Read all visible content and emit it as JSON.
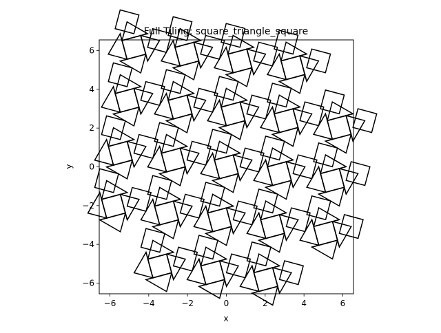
{
  "chart_data": {
    "type": "line",
    "title": "Full Tiling: square_triangle_square",
    "xlabel": "x",
    "ylabel": "y",
    "xlim": [
      -6.55,
      6.55
    ],
    "ylim": [
      -6.55,
      6.55
    ],
    "xticks": [
      -6,
      -4,
      -2,
      0,
      2,
      4,
      6
    ],
    "yticks": [
      -6,
      -4,
      -2,
      0,
      2,
      4,
      6
    ],
    "xtick_labels": [
      "−6",
      "−4",
      "−2",
      "0",
      "2",
      "4",
      "6"
    ],
    "ytick_labels": [
      "−6",
      "−4",
      "−2",
      "0",
      "2",
      "4",
      "6"
    ],
    "grid": false,
    "legend": "none",
    "line_color": "#000000",
    "aspect": "equal",
    "tiling": {
      "square_side": 1.0,
      "rotation_deg": 15,
      "lattice_a": [
        2.732,
        0
      ],
      "lattice_b": [
        0,
        2.732
      ],
      "cells": [
        [
          -2,
          2
        ],
        [
          -1,
          2
        ],
        [
          0,
          2
        ],
        [
          1,
          2
        ],
        [
          -2,
          1
        ],
        [
          -1,
          1
        ],
        [
          0,
          1
        ],
        [
          1,
          1
        ],
        [
          2,
          1
        ],
        [
          -2,
          0
        ],
        [
          -1,
          0
        ],
        [
          0,
          0
        ],
        [
          1,
          0
        ],
        [
          2,
          0
        ],
        [
          -2,
          -1
        ],
        [
          -1,
          -1
        ],
        [
          0,
          -1
        ],
        [
          1,
          -1
        ],
        [
          2,
          -1
        ],
        [
          -1,
          -2
        ],
        [
          0,
          -2
        ],
        [
          1,
          -2
        ]
      ]
    }
  }
}
